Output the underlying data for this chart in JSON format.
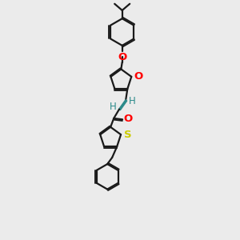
{
  "bg_color": "#ebebeb",
  "bond_color": "#1a1a1a",
  "vinyl_color": "#2a8a8a",
  "O_color": "#ff0000",
  "S_color": "#cccc00",
  "H_color": "#2a8a8a",
  "lw": 1.6,
  "doff": 0.055,
  "fs": 8.5,
  "fig_w": 3.0,
  "fig_h": 3.0,
  "dpi": 100,
  "xlim": [
    0,
    6
  ],
  "ylim": [
    0,
    11
  ]
}
